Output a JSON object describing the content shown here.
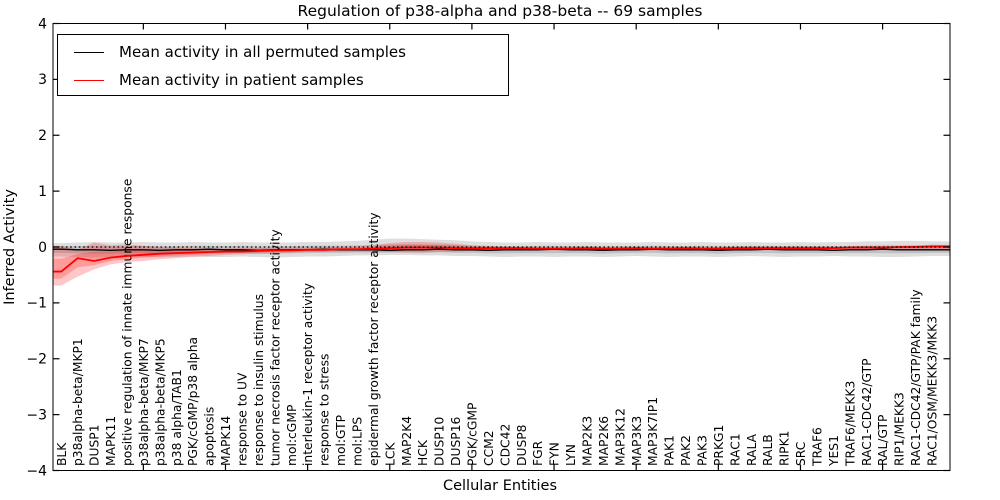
{
  "title": "Regulation of p38-alpha and p38-beta -- 69 samples",
  "axes": {
    "xlabel": "Cellular Entities",
    "ylabel": "Inferred Activity",
    "ytick_labels": [
      "4",
      "3",
      "2",
      "1",
      "0",
      "−1",
      "−2",
      "−3",
      "−4"
    ],
    "ylim": [
      -4,
      4
    ]
  },
  "legend": {
    "entries": [
      {
        "label": "Mean activity in all permuted samples",
        "color": "#000000"
      },
      {
        "label": "Mean activity in patient samples",
        "color": "#ff0000"
      }
    ]
  },
  "chart_data": {
    "type": "line",
    "title": "Regulation of p38-alpha and p38-beta -- 69 samples",
    "xlabel": "Cellular Entities",
    "ylabel": "Inferred Activity",
    "ylim": [
      -4,
      4
    ],
    "grid": false,
    "legend_position": "upper left",
    "zero_reference_line": 0,
    "xtick_positions_major": [
      5,
      10,
      15,
      20,
      25,
      30,
      35,
      40,
      45,
      50
    ],
    "categories": [
      "BLK",
      "p38alpha-beta/MKP1",
      "DUSP1",
      "MAPK11",
      "positive regulation of innate immune response",
      "p38alpha-beta/MKP7",
      "p38alpha-beta/MKP5",
      "p38 alpha/TAB1",
      "PGK/cGMP/p38 alpha",
      "apoptosis",
      "MAPK14",
      "response to UV",
      "response to insulin stimulus",
      "tumor necrosis factor receptor activity",
      "mol:cGMP",
      "interleukin-1 receptor activity",
      "response to stress",
      "mol:GTP",
      "mol:LPS",
      "epidermal growth factor receptor activity",
      "LCK",
      "MAP2K4",
      "HCK",
      "DUSP10",
      "DUSP16",
      "PGK/cGMP",
      "CCM2",
      "CDC42",
      "DUSP8",
      "FGR",
      "FYN",
      "LYN",
      "MAP2K3",
      "MAP2K6",
      "MAP3K12",
      "MAP3K3",
      "MAP3K7IP1",
      "PAK1",
      "PAK2",
      "PAK3",
      "PRKG1",
      "RAC1",
      "RALA",
      "RALB",
      "RIPK1",
      "SRC",
      "TRAF6",
      "YES1",
      "TRAF6/MEKK3",
      "RAC1-CDC42/GTP",
      "RAL/GTP",
      "RIP1/MEKK3",
      "RAC1-CDC42/GTP/PAK family",
      "RAC1/OSM/MEKK3/MKK3"
    ],
    "series": [
      {
        "name": "Mean activity in all permuted samples",
        "color": "#000000",
        "style": "solid",
        "values": [
          -0.04,
          -0.05,
          -0.05,
          -0.06,
          -0.05,
          -0.05,
          -0.06,
          -0.05,
          -0.05,
          -0.04,
          -0.05,
          -0.05,
          -0.06,
          -0.05,
          -0.05,
          -0.05,
          -0.04,
          -0.05,
          -0.05,
          -0.05,
          -0.06,
          -0.05,
          -0.05,
          -0.04,
          -0.05,
          -0.05,
          -0.06,
          -0.05,
          -0.05,
          -0.05,
          -0.04,
          -0.05,
          -0.05,
          -0.06,
          -0.05,
          -0.05,
          -0.04,
          -0.05,
          -0.05,
          -0.05,
          -0.06,
          -0.05,
          -0.05,
          -0.04,
          -0.05,
          -0.05,
          -0.05,
          -0.06,
          -0.05,
          -0.05,
          -0.04,
          -0.05,
          -0.05,
          -0.05
        ]
      },
      {
        "name": "Mean activity in patient samples",
        "color": "#ff0000",
        "style": "solid",
        "values": [
          -0.44,
          -0.2,
          -0.25,
          -0.19,
          -0.16,
          -0.14,
          -0.12,
          -0.11,
          -0.1,
          -0.09,
          -0.08,
          -0.08,
          -0.07,
          -0.06,
          -0.06,
          -0.05,
          -0.05,
          -0.04,
          -0.04,
          -0.03,
          -0.02,
          -0.01,
          -0.01,
          -0.01,
          -0.02,
          -0.02,
          -0.02,
          -0.02,
          -0.02,
          -0.03,
          -0.03,
          -0.03,
          -0.02,
          -0.03,
          -0.03,
          -0.02,
          -0.03,
          -0.03,
          -0.02,
          -0.03,
          -0.03,
          -0.02,
          -0.02,
          -0.02,
          -0.02,
          -0.02,
          -0.02,
          -0.02,
          -0.01,
          -0.01,
          -0.01,
          0.0,
          0.0,
          0.01
        ]
      }
    ],
    "bands": [
      {
        "name": "permuted samples range",
        "color": "rgba(0,0,0,0.13)",
        "upper": [
          0.07,
          0.08,
          0.09,
          0.08,
          0.08,
          0.09,
          0.08,
          0.08,
          0.09,
          0.08,
          0.08,
          0.09,
          0.08,
          0.08,
          0.08,
          0.09,
          0.09,
          0.1,
          0.11,
          0.13,
          0.15,
          0.15,
          0.14,
          0.13,
          0.12,
          0.1,
          0.09,
          0.08,
          0.08,
          0.09,
          0.08,
          0.08,
          0.09,
          0.08,
          0.08,
          0.08,
          0.09,
          0.08,
          0.08,
          0.09,
          0.08,
          0.08,
          0.09,
          0.08,
          0.08,
          0.09,
          0.08,
          0.09,
          0.09,
          0.1,
          0.1,
          0.11,
          0.11,
          0.1
        ],
        "lower": [
          -0.17,
          -0.18,
          -0.19,
          -0.18,
          -0.17,
          -0.18,
          -0.19,
          -0.18,
          -0.17,
          -0.18,
          -0.18,
          -0.17,
          -0.18,
          -0.19,
          -0.18,
          -0.17,
          -0.17,
          -0.16,
          -0.15,
          -0.15,
          -0.14,
          -0.14,
          -0.15,
          -0.15,
          -0.16,
          -0.16,
          -0.17,
          -0.18,
          -0.17,
          -0.17,
          -0.18,
          -0.17,
          -0.17,
          -0.18,
          -0.17,
          -0.16,
          -0.17,
          -0.18,
          -0.17,
          -0.17,
          -0.18,
          -0.17,
          -0.16,
          -0.17,
          -0.18,
          -0.17,
          -0.17,
          -0.16,
          -0.17,
          -0.17,
          -0.18,
          -0.18,
          -0.17,
          -0.16
        ]
      },
      {
        "name": "patient samples range",
        "color": "rgba(255,0,0,0.22)",
        "upper": [
          0.02,
          -0.05,
          0.08,
          0.03,
          0.05,
          0.02,
          0.0,
          -0.01,
          -0.02,
          -0.03,
          -0.03,
          -0.02,
          -0.02,
          -0.01,
          -0.01,
          -0.01,
          0.0,
          0.0,
          0.01,
          0.03,
          0.07,
          0.09,
          0.09,
          0.08,
          0.06,
          0.03,
          0.02,
          0.01,
          0.0,
          0.0,
          0.0,
          0.0,
          0.0,
          0.0,
          0.0,
          0.0,
          0.0,
          0.0,
          0.0,
          0.0,
          0.0,
          0.0,
          0.01,
          0.01,
          0.01,
          0.01,
          0.01,
          0.01,
          0.01,
          0.02,
          0.02,
          0.02,
          0.03,
          0.04
        ],
        "lower": [
          -0.69,
          -0.53,
          -0.4,
          -0.31,
          -0.27,
          -0.25,
          -0.22,
          -0.2,
          -0.18,
          -0.16,
          -0.14,
          -0.13,
          -0.12,
          -0.11,
          -0.1,
          -0.09,
          -0.09,
          -0.08,
          -0.08,
          -0.08,
          -0.09,
          -0.1,
          -0.1,
          -0.09,
          -0.08,
          -0.07,
          -0.07,
          -0.06,
          -0.06,
          -0.06,
          -0.06,
          -0.06,
          -0.06,
          -0.06,
          -0.06,
          -0.06,
          -0.06,
          -0.05,
          -0.05,
          -0.05,
          -0.05,
          -0.05,
          -0.05,
          -0.05,
          -0.05,
          -0.05,
          -0.05,
          -0.04,
          -0.04,
          -0.04,
          -0.04,
          -0.04,
          -0.04,
          -0.04
        ]
      }
    ]
  }
}
